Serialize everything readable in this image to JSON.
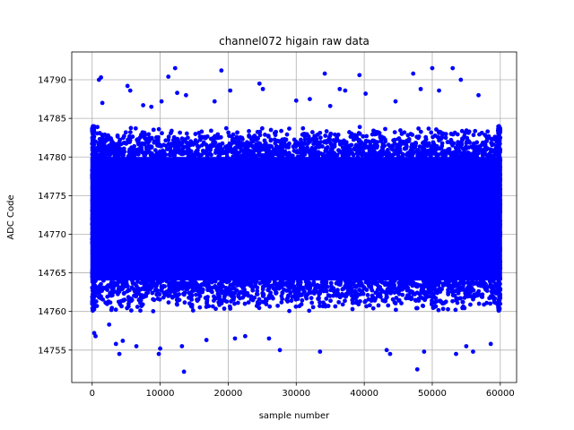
{
  "chart_data": {
    "type": "scatter",
    "title": "channel072 higain raw data",
    "xlabel": "sample number",
    "ylabel": "ADC Code",
    "xlim": [
      -3000,
      62400
    ],
    "ylim": [
      14750.8,
      14793.6
    ],
    "xticks": [
      0,
      10000,
      20000,
      30000,
      40000,
      50000,
      60000
    ],
    "yticks": [
      14755,
      14760,
      14765,
      14770,
      14775,
      14780,
      14785,
      14790
    ],
    "grid": true,
    "marker_color": "#0000ff",
    "series": [
      {
        "x_range": [
          0,
          59999
        ],
        "dense_band": [
          14760,
          14784
        ],
        "outlier_points": [
          [
            1000,
            14790
          ],
          [
            1300,
            14790.3
          ],
          [
            300,
            14757.2
          ],
          [
            500,
            14756.8
          ],
          [
            1500,
            14787
          ],
          [
            2500,
            14758.3
          ],
          [
            3500,
            14755.8
          ],
          [
            4000,
            14754.5
          ],
          [
            4500,
            14756.2
          ],
          [
            5200,
            14789.2
          ],
          [
            5600,
            14788.6
          ],
          [
            6500,
            14755.5
          ],
          [
            7500,
            14786.7
          ],
          [
            8700,
            14786.5
          ],
          [
            9800,
            14754.5
          ],
          [
            10000,
            14755.2
          ],
          [
            10200,
            14787.2
          ],
          [
            11200,
            14790.4
          ],
          [
            12200,
            14791.5
          ],
          [
            12500,
            14788.3
          ],
          [
            13500,
            14752.2
          ],
          [
            13200,
            14755.5
          ],
          [
            13800,
            14788
          ],
          [
            16800,
            14756.3
          ],
          [
            18000,
            14787.2
          ],
          [
            19000,
            14791.2
          ],
          [
            20300,
            14788.6
          ],
          [
            21000,
            14756.5
          ],
          [
            22500,
            14756.8
          ],
          [
            24600,
            14789.5
          ],
          [
            25100,
            14788.8
          ],
          [
            26000,
            14756.5
          ],
          [
            27600,
            14755
          ],
          [
            30000,
            14787.3
          ],
          [
            32000,
            14787.5
          ],
          [
            33500,
            14754.8
          ],
          [
            34200,
            14790.8
          ],
          [
            35000,
            14786.6
          ],
          [
            36400,
            14788.8
          ],
          [
            37200,
            14788.6
          ],
          [
            39300,
            14790.6
          ],
          [
            40200,
            14788.2
          ],
          [
            43300,
            14755
          ],
          [
            43800,
            14754.5
          ],
          [
            44600,
            14787.2
          ],
          [
            47200,
            14790.8
          ],
          [
            47800,
            14752.5
          ],
          [
            48300,
            14788.8
          ],
          [
            48800,
            14754.8
          ],
          [
            50000,
            14791.5
          ],
          [
            51000,
            14788.6
          ],
          [
            53000,
            14791.5
          ],
          [
            53500,
            14754.5
          ],
          [
            54200,
            14790
          ],
          [
            55000,
            14755.5
          ],
          [
            56000,
            14754.8
          ],
          [
            56800,
            14788
          ],
          [
            58600,
            14755.8
          ]
        ]
      }
    ]
  }
}
